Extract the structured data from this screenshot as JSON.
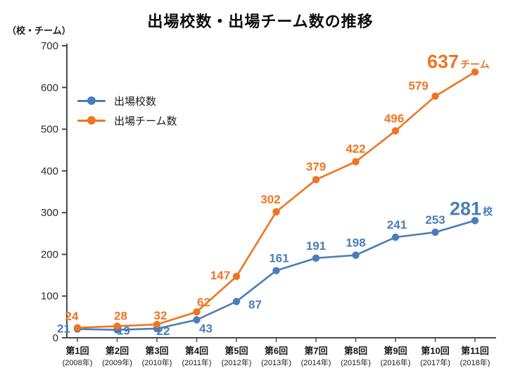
{
  "chart_data": {
    "type": "line",
    "title": "出場校数・出場チーム数の推移",
    "unit_label": "（校・チーム）",
    "legend_position": "upper-left-inside",
    "grid": false,
    "ylim": [
      0,
      700
    ],
    "y_ticks": [
      0,
      100,
      200,
      300,
      400,
      500,
      600,
      700
    ],
    "categories": [
      {
        "round": "第1回",
        "year": "(2008年)"
      },
      {
        "round": "第2回",
        "year": "(2009年)"
      },
      {
        "round": "第3回",
        "year": "(2010年)"
      },
      {
        "round": "第4回",
        "year": "(2011年)"
      },
      {
        "round": "第5回",
        "year": "(2012年)"
      },
      {
        "round": "第6回",
        "year": "(2013年)"
      },
      {
        "round": "第7回",
        "year": "(2014年)"
      },
      {
        "round": "第8回",
        "year": "(2015年)"
      },
      {
        "round": "第9回",
        "year": "(2016年)"
      },
      {
        "round": "第10回",
        "year": "(2017年)"
      },
      {
        "round": "第11回",
        "year": "(2018年)"
      }
    ],
    "series": [
      {
        "name": "出場校数",
        "color": "#4a7db8",
        "values": [
          21,
          19,
          22,
          43,
          87,
          161,
          191,
          198,
          241,
          253,
          281
        ],
        "final_suffix": "校"
      },
      {
        "name": "出場チーム数",
        "color": "#ed7623",
        "values": [
          24,
          28,
          32,
          62,
          147,
          302,
          379,
          422,
          496,
          579,
          637
        ],
        "final_suffix": "チーム"
      }
    ]
  }
}
